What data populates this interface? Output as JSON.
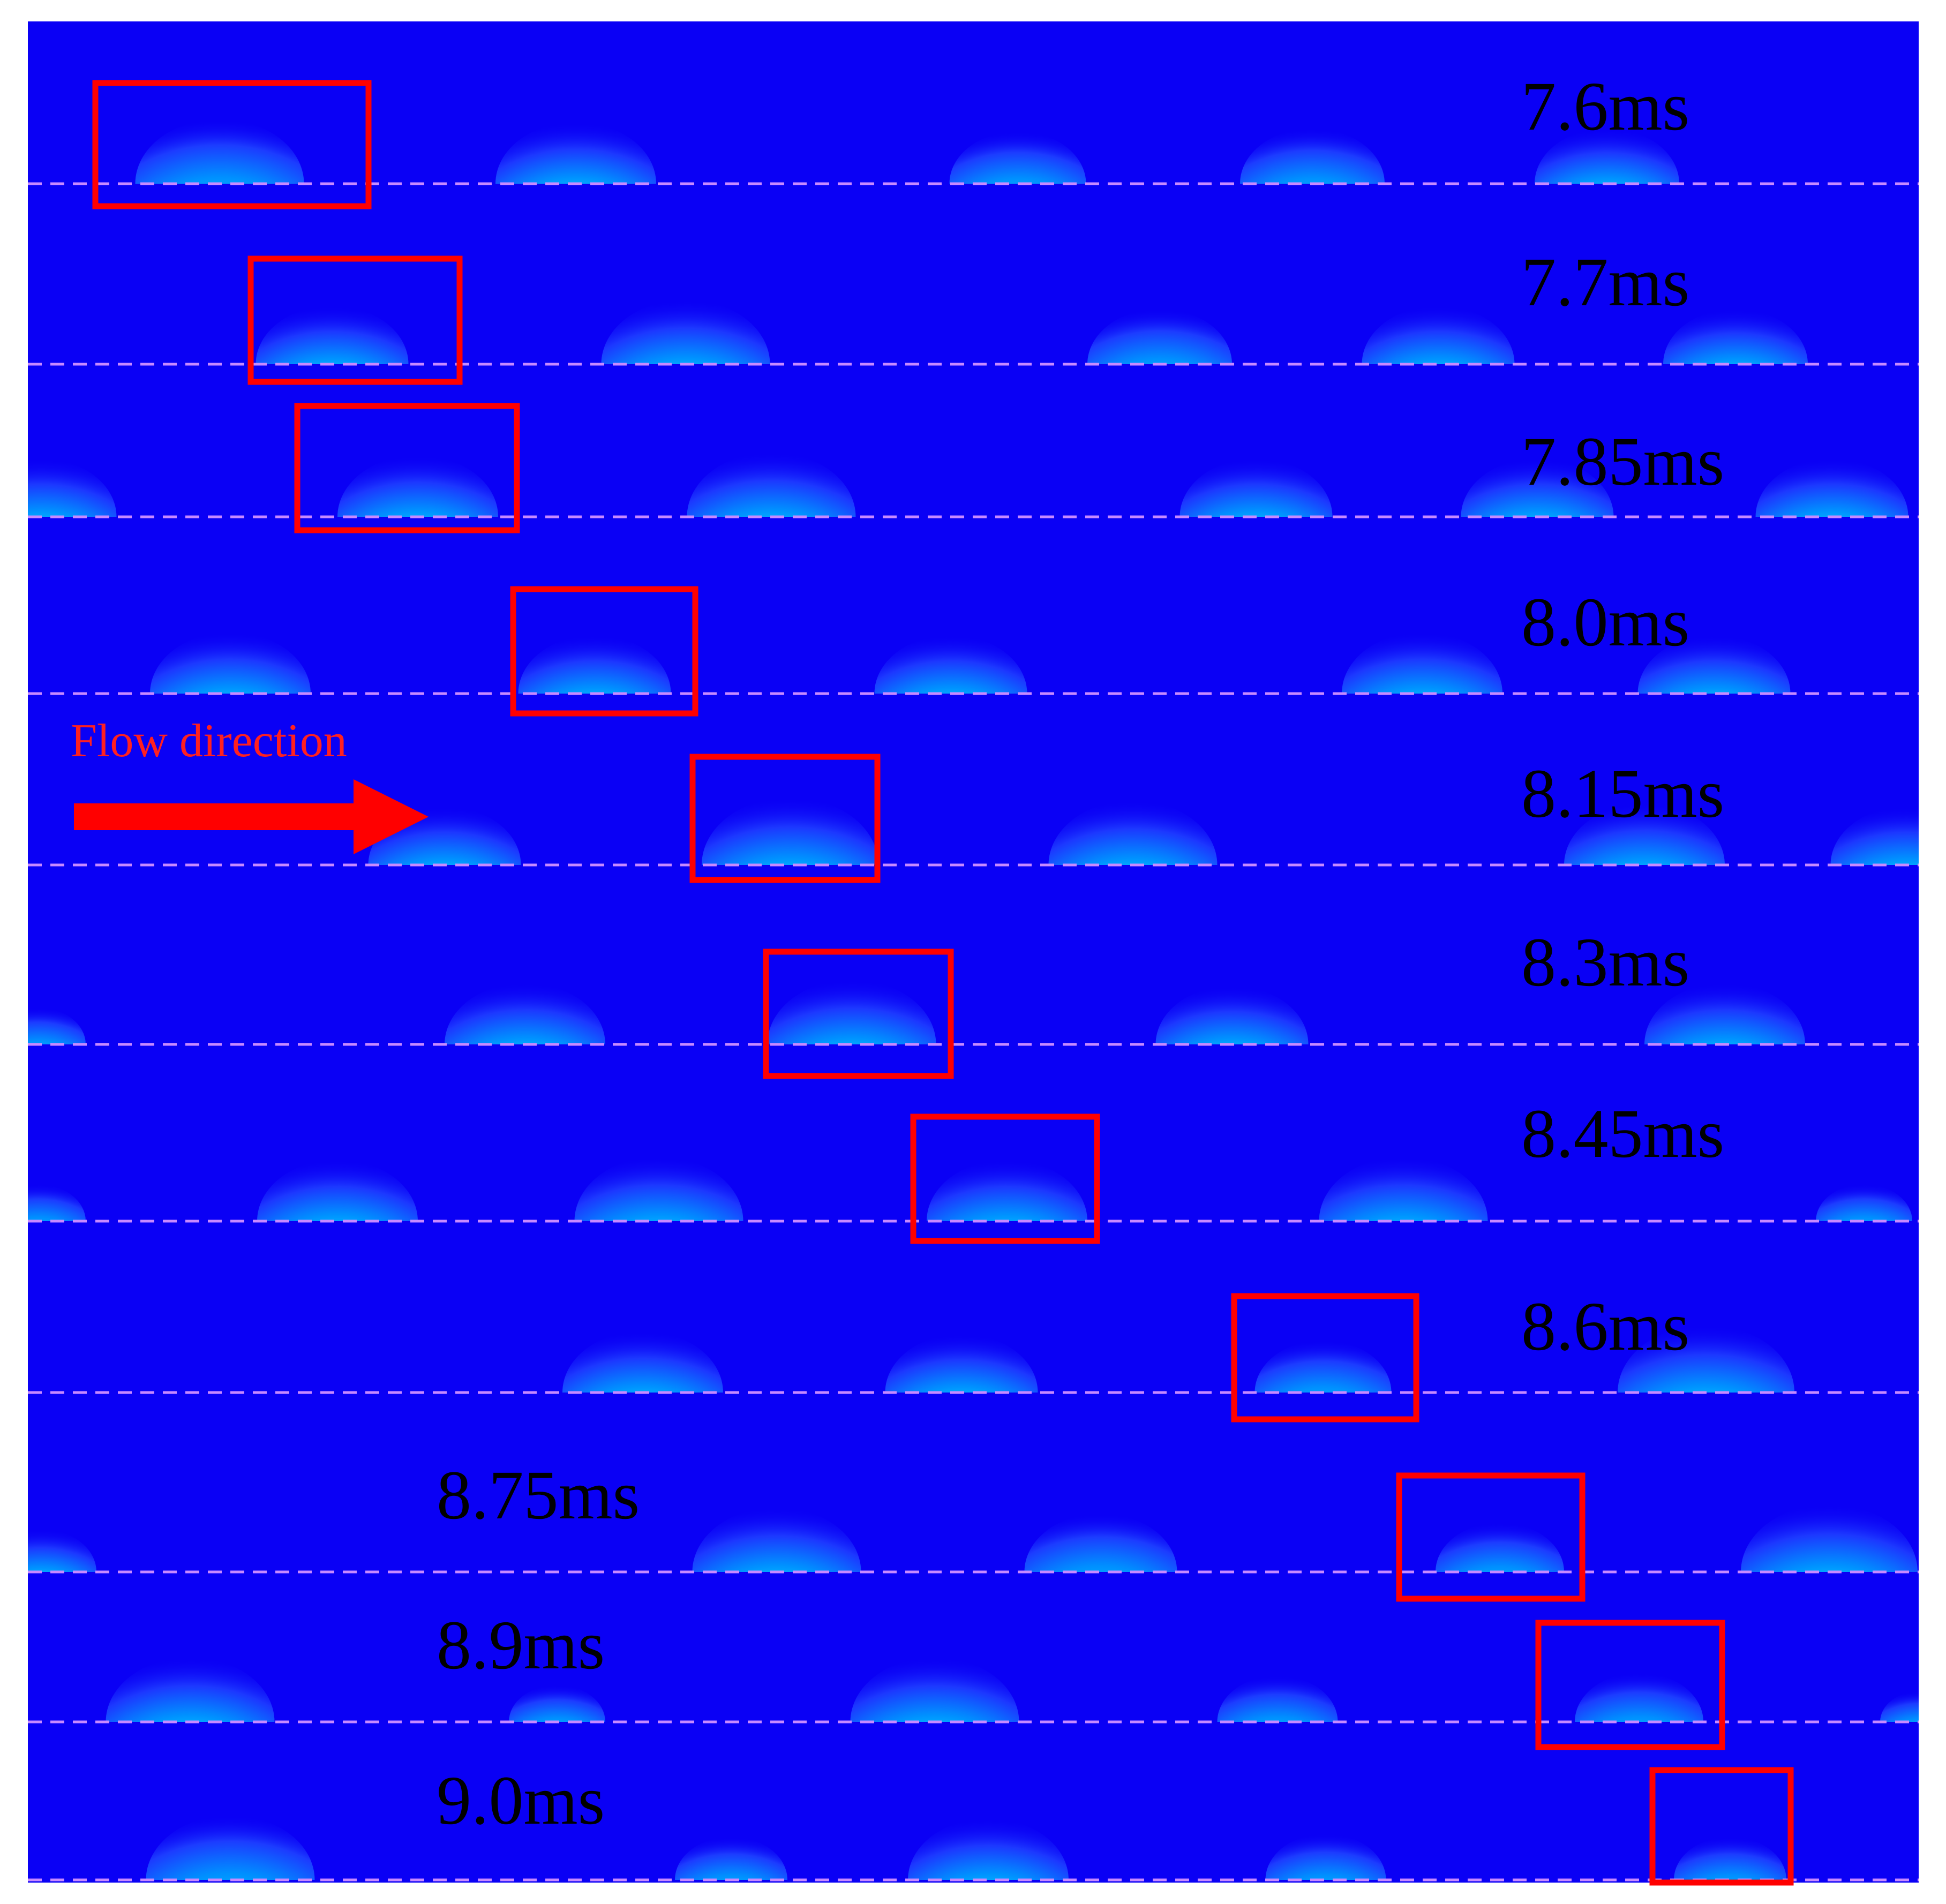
{
  "colors": {
    "background": "#0a00f5",
    "highlight_box": "#ff0000",
    "baseline": "#c88aff",
    "flow_arrow": "#ff0000",
    "flow_text": "#ff2020"
  },
  "flow_annotation": {
    "label": "Flow direction",
    "icon": "right-arrow-icon"
  },
  "snapshots": [
    {
      "label": "7.6ms"
    },
    {
      "label": "7.7ms"
    },
    {
      "label": "7.85ms"
    },
    {
      "label": "8.0ms"
    },
    {
      "label": "8.15ms"
    },
    {
      "label": "8.3ms"
    },
    {
      "label": "8.45ms"
    },
    {
      "label": "8.6ms"
    },
    {
      "label": "8.75ms"
    },
    {
      "label": "8.9ms"
    },
    {
      "label": "9.0ms"
    }
  ]
}
